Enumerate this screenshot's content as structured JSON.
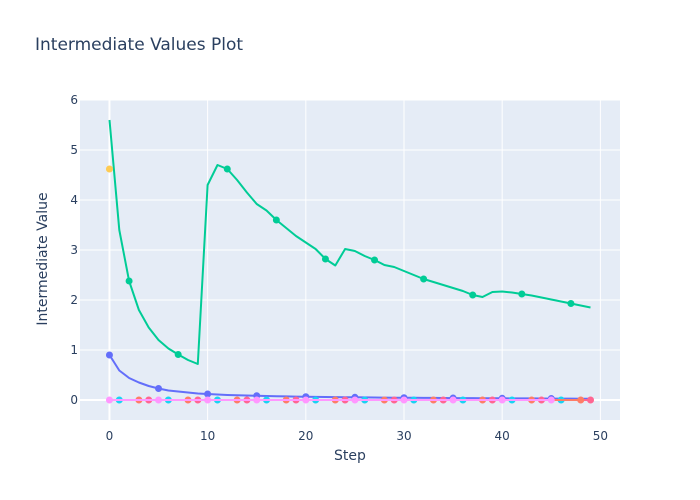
{
  "chart_data": {
    "type": "line",
    "title": "Intermediate Values Plot",
    "xlabel": "Step",
    "ylabel": "Intermediate Value",
    "xlim": [
      -3,
      52
    ],
    "ylim": [
      -0.4,
      6
    ],
    "x_ticks": [
      0,
      10,
      20,
      30,
      40,
      50
    ],
    "y_ticks": [
      0,
      1,
      2,
      3,
      4,
      5,
      6
    ],
    "grid": true,
    "legend": "none",
    "series": [
      {
        "color": "#00cc96",
        "x": [
          0,
          1,
          2,
          3,
          4,
          5,
          6,
          7,
          8,
          9,
          10,
          11,
          12,
          13,
          14,
          15,
          16,
          17,
          18,
          19,
          20,
          21,
          22,
          23,
          24,
          25,
          26,
          27,
          28,
          29,
          30,
          31,
          32,
          33,
          34,
          35,
          36,
          37,
          38,
          39,
          40,
          41,
          42,
          43,
          44,
          45,
          46,
          47,
          48,
          49
        ],
        "y": [
          5.6,
          3.4,
          2.38,
          1.8,
          1.45,
          1.2,
          1.03,
          0.91,
          0.8,
          0.72,
          4.3,
          4.7,
          4.62,
          4.4,
          4.15,
          3.92,
          3.79,
          3.6,
          3.44,
          3.28,
          3.15,
          3.02,
          2.82,
          2.69,
          3.02,
          2.98,
          2.88,
          2.8,
          2.7,
          2.66,
          2.58,
          2.5,
          2.42,
          2.36,
          2.3,
          2.24,
          2.18,
          2.1,
          2.06,
          2.16,
          2.17,
          2.15,
          2.12,
          2.09,
          2.05,
          2.01,
          1.97,
          1.93,
          1.89,
          1.85
        ],
        "markers": [
          2,
          7,
          12,
          17,
          22,
          27,
          32,
          37,
          42,
          47
        ]
      },
      {
        "color": "#636efa",
        "x": [
          0,
          1,
          2,
          3,
          4,
          5,
          6,
          7,
          8,
          9,
          10,
          11,
          12,
          13,
          14,
          15,
          16,
          17,
          18,
          19,
          20,
          21,
          22,
          23,
          24,
          25,
          26,
          27,
          28,
          29,
          30,
          31,
          32,
          33,
          34,
          35,
          36,
          37,
          38,
          39,
          40,
          41,
          42,
          43,
          44,
          45,
          46,
          47,
          48,
          49
        ],
        "y": [
          0.9,
          0.59,
          0.44,
          0.35,
          0.28,
          0.23,
          0.19,
          0.17,
          0.15,
          0.13,
          0.12,
          0.11,
          0.1,
          0.095,
          0.09,
          0.085,
          0.08,
          0.076,
          0.072,
          0.068,
          0.065,
          0.062,
          0.06,
          0.058,
          0.056,
          0.054,
          0.052,
          0.05,
          0.048,
          0.046,
          0.045,
          0.044,
          0.042,
          0.041,
          0.04,
          0.039,
          0.038,
          0.037,
          0.036,
          0.035,
          0.034,
          0.033,
          0.032,
          0.031,
          0.03,
          0.029,
          0.028,
          0.027,
          0.026,
          0.025
        ],
        "markers": [
          0,
          5,
          10,
          15,
          20,
          25,
          30,
          35,
          40,
          45
        ]
      },
      {
        "color": "#ab63fa",
        "x": [
          0,
          5,
          10,
          15,
          20,
          25,
          30,
          35,
          40,
          45,
          49
        ],
        "y": [
          0,
          0,
          0,
          0,
          0,
          0,
          0,
          0,
          0,
          0,
          0
        ],
        "markers": []
      },
      {
        "color": "#19d3f3",
        "x": [
          0,
          1,
          6,
          11,
          16,
          21,
          26,
          31,
          36,
          41,
          46,
          49
        ],
        "y": [
          0,
          0,
          0,
          0,
          0,
          0,
          0,
          0,
          0,
          0,
          0,
          0
        ],
        "markers": [
          1,
          6,
          11,
          16,
          21,
          26,
          31,
          36,
          41,
          46
        ]
      },
      {
        "color": "#ff6692",
        "x": [
          0,
          4,
          9,
          14,
          19,
          24,
          29,
          34,
          39,
          44,
          49
        ],
        "y": [
          0,
          0,
          0,
          0,
          0,
          0,
          0,
          0,
          0,
          0,
          0
        ],
        "markers": [
          4,
          9,
          14,
          19,
          24,
          29,
          34,
          39,
          44,
          49
        ]
      },
      {
        "color": "#fe7d67",
        "x": [
          0,
          3,
          8,
          13,
          18,
          23,
          28,
          33,
          38,
          43,
          48
        ],
        "y": [
          0,
          0,
          0,
          0,
          0,
          0,
          0,
          0,
          0,
          0,
          0
        ],
        "markers": [
          3,
          8,
          13,
          18,
          23,
          28,
          33,
          38,
          43,
          48
        ]
      },
      {
        "color": "#ff97ff",
        "x": [
          0,
          5,
          10,
          15,
          20,
          25,
          30,
          35,
          40,
          45
        ],
        "y": [
          0,
          0,
          0,
          0,
          0,
          0,
          0,
          0,
          0,
          0
        ],
        "markers": [
          0,
          5,
          10,
          15,
          20,
          25,
          30,
          35,
          40,
          45
        ]
      },
      {
        "color": "#fecb52",
        "x": [
          0
        ],
        "y": [
          4.62
        ],
        "markers": [
          0
        ]
      }
    ]
  }
}
